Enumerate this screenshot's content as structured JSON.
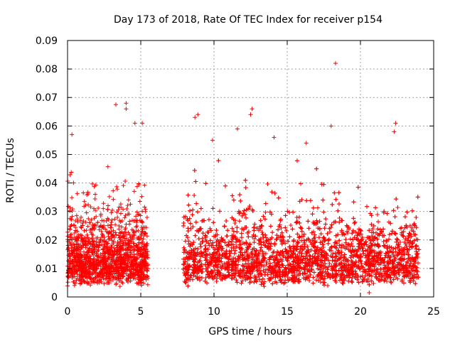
{
  "chart_data": {
    "type": "scatter",
    "title": "Day 173 of 2018, Rate Of TEC Index for receiver p154",
    "xlabel": "GPS time / hours",
    "ylabel": "ROTI / TECUs",
    "xlim": [
      0,
      25
    ],
    "ylim": [
      0,
      0.09
    ],
    "x_ticks": [
      0,
      5,
      10,
      15,
      20,
      25
    ],
    "y_ticks": [
      0,
      0.01,
      0.02,
      0.03,
      0.04,
      0.05,
      0.06,
      0.07,
      0.08,
      0.09
    ],
    "x_tick_labels": [
      "0",
      "5",
      "10",
      "15",
      "20",
      "25"
    ],
    "y_tick_labels": [
      "0",
      "0.01",
      "0.02",
      "0.03",
      "0.04",
      "0.05",
      "0.06",
      "0.07",
      "0.08",
      "0.09"
    ],
    "grid": true,
    "marker": "+",
    "color": "#ff0000",
    "series": [
      {
        "name": "ROTI",
        "segments": [
          {
            "x_range": [
              0.0,
              5.5
            ],
            "typical_y": [
              0.005,
              0.035
            ]
          },
          {
            "x_range": [
              7.9,
              24.0
            ],
            "typical_y": [
              0.005,
              0.035
            ]
          }
        ],
        "notable_points": [
          {
            "x": 3.3,
            "y": 0.0675
          },
          {
            "x": 4.0,
            "y": 0.068
          },
          {
            "x": 4.0,
            "y": 0.066
          },
          {
            "x": 4.6,
            "y": 0.061
          },
          {
            "x": 5.1,
            "y": 0.061
          },
          {
            "x": 8.9,
            "y": 0.064
          },
          {
            "x": 8.7,
            "y": 0.063
          },
          {
            "x": 12.6,
            "y": 0.066
          },
          {
            "x": 12.5,
            "y": 0.064
          },
          {
            "x": 11.6,
            "y": 0.059
          },
          {
            "x": 18.0,
            "y": 0.06
          },
          {
            "x": 18.3,
            "y": 0.082
          },
          {
            "x": 22.4,
            "y": 0.061
          },
          {
            "x": 22.3,
            "y": 0.058
          },
          {
            "x": 0.3,
            "y": 0.057
          },
          {
            "x": 9.9,
            "y": 0.055
          },
          {
            "x": 16.3,
            "y": 0.054
          },
          {
            "x": 14.1,
            "y": 0.056
          },
          {
            "x": 20.6,
            "y": 0.0015
          }
        ]
      }
    ]
  }
}
